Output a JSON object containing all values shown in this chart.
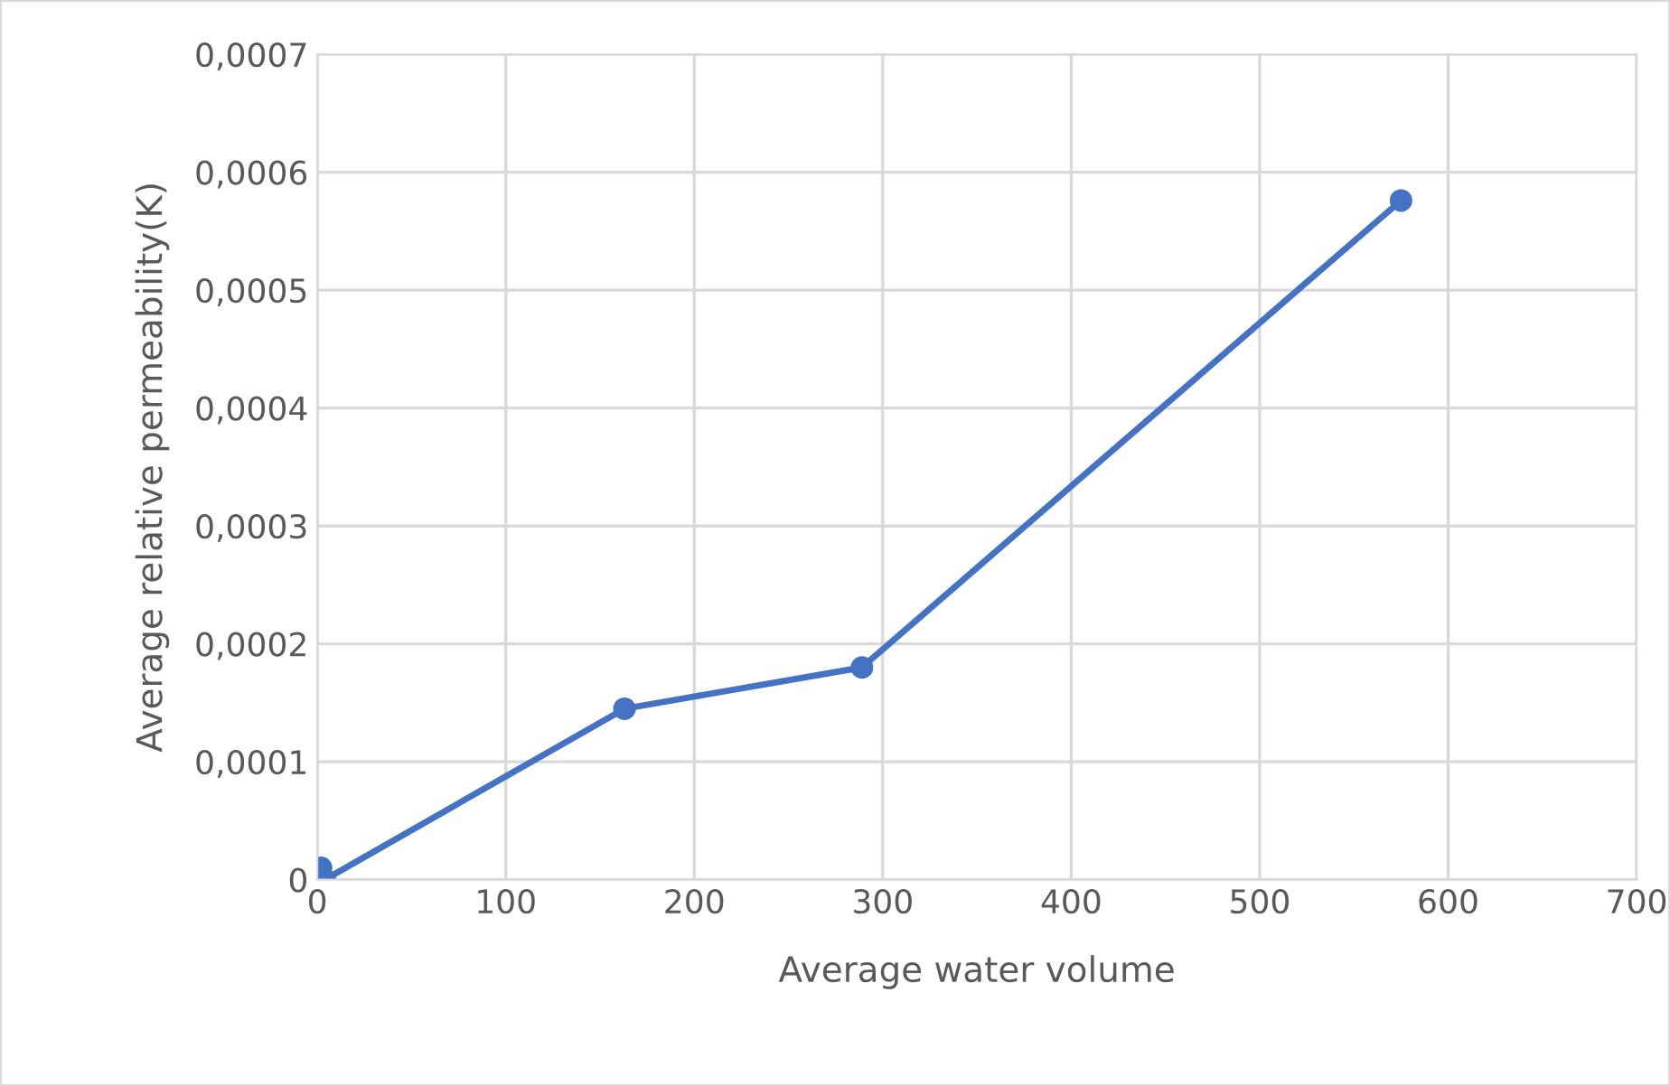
{
  "chart_data": {
    "type": "line",
    "xlabel": "Average water volume",
    "ylabel": "Average relative permeability(K)",
    "series": [
      {
        "color": "#4472c4",
        "x": [
          2,
          4,
          163,
          289,
          575
        ],
        "values": [
          1e-05,
          0.0,
          0.000145,
          0.00018,
          0.000576
        ]
      }
    ],
    "xlim": [
      0,
      700
    ],
    "xticks": [
      0,
      100,
      200,
      300,
      400,
      500,
      600,
      700
    ],
    "ylim": [
      0,
      0.0007
    ],
    "yticks": [
      {
        "value": 0,
        "label": "0"
      },
      {
        "value": 0.0001,
        "label": "0,0001"
      },
      {
        "value": 0.0002,
        "label": "0,0002"
      },
      {
        "value": 0.0003,
        "label": "0,0003"
      },
      {
        "value": 0.0004,
        "label": "0,0004"
      },
      {
        "value": 0.0005,
        "label": "0,0005"
      },
      {
        "value": 0.0006,
        "label": "0,0006"
      },
      {
        "value": 0.0007,
        "label": "0,0007"
      }
    ],
    "grid": true,
    "marker": "circle",
    "line_style": "solid",
    "legend": false
  }
}
